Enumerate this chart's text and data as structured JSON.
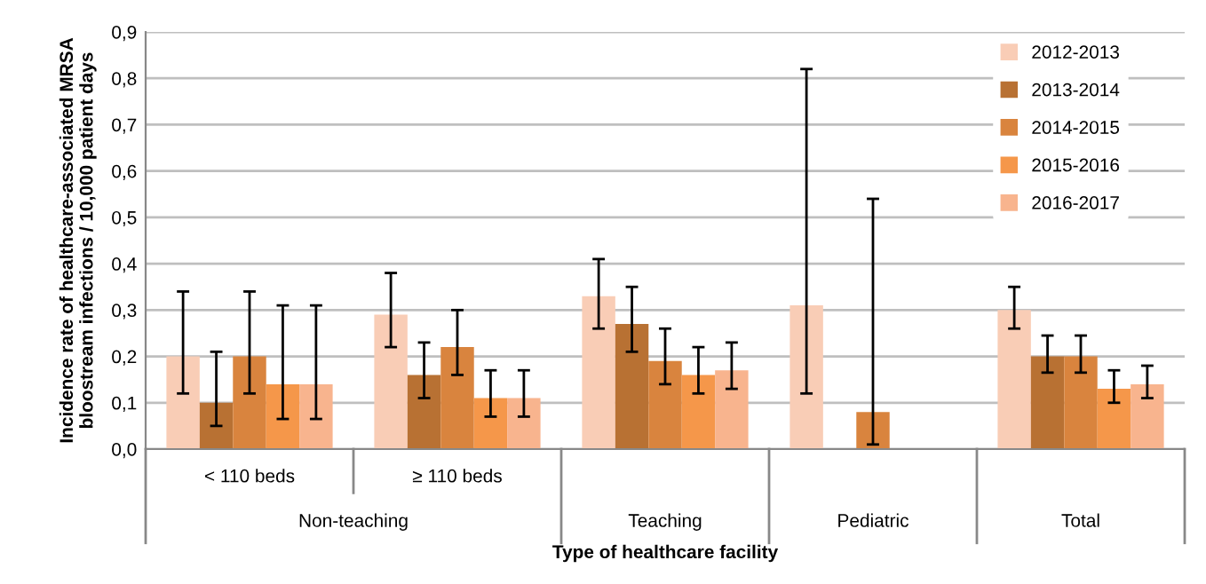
{
  "chart_data": {
    "type": "bar",
    "categories": [
      "< 110 beds",
      "≥ 110 beds",
      "Teaching",
      "Pediatric",
      "Total"
    ],
    "annotations": [
      "Non-teaching"
    ],
    "xlabel": "Type of healthcare facility",
    "ylabel": "Incidence rate of healthcare-associated MRSA\nbloostream infections / 10,000 patient days",
    "ylim": [
      0,
      0.9
    ],
    "yticks": [
      {
        "value": 0,
        "label": "0,0"
      },
      {
        "value": 0.1,
        "label": "0,1"
      },
      {
        "value": 0.2,
        "label": "0,2"
      },
      {
        "value": 0.3,
        "label": "0,3"
      },
      {
        "value": 0.4,
        "label": "0,4"
      },
      {
        "value": 0.5,
        "label": "0,5"
      },
      {
        "value": 0.6,
        "label": "0,6"
      },
      {
        "value": 0.7,
        "label": "0,7"
      },
      {
        "value": 0.8,
        "label": "0,8"
      },
      {
        "value": 0.9,
        "label": "0,9"
      }
    ],
    "grid": "y",
    "legend": "top right",
    "series": [
      {
        "name": "2012-2013",
        "color": "#f9cdb6",
        "values": [
          0.2,
          0.29,
          0.33,
          0.31,
          0.3
        ],
        "errors": [
          [
            0.12,
            0.34
          ],
          [
            0.22,
            0.38
          ],
          [
            0.26,
            0.41
          ],
          [
            0.12,
            0.82
          ],
          [
            0.26,
            0.35
          ]
        ]
      },
      {
        "name": "2013-2014",
        "color": "#b87133",
        "values": [
          0.1,
          0.16,
          0.27,
          null,
          0.2
        ],
        "errors": [
          [
            0.05,
            0.21
          ],
          [
            0.11,
            0.23
          ],
          [
            0.21,
            0.35
          ],
          null,
          [
            0.165,
            0.245
          ]
        ]
      },
      {
        "name": "2014-2015",
        "color": "#d9843e",
        "values": [
          0.2,
          0.22,
          0.19,
          0.08,
          0.2
        ],
        "errors": [
          [
            0.12,
            0.34
          ],
          [
            0.16,
            0.3
          ],
          [
            0.14,
            0.26
          ],
          [
            0.01,
            0.54
          ],
          [
            0.165,
            0.245
          ]
        ]
      },
      {
        "name": "2015-2016",
        "color": "#f5974a",
        "values": [
          0.14,
          0.11,
          0.16,
          null,
          0.13
        ],
        "errors": [
          [
            0.065,
            0.31
          ],
          [
            0.07,
            0.17
          ],
          [
            0.12,
            0.22
          ],
          null,
          [
            0.1,
            0.17
          ]
        ]
      },
      {
        "name": "2016-2017",
        "color": "#f8b48e",
        "values": [
          0.14,
          0.11,
          0.17,
          null,
          0.14
        ],
        "errors": [
          [
            0.065,
            0.31
          ],
          [
            0.07,
            0.17
          ],
          [
            0.13,
            0.23
          ],
          null,
          [
            0.11,
            0.18
          ]
        ]
      }
    ]
  }
}
